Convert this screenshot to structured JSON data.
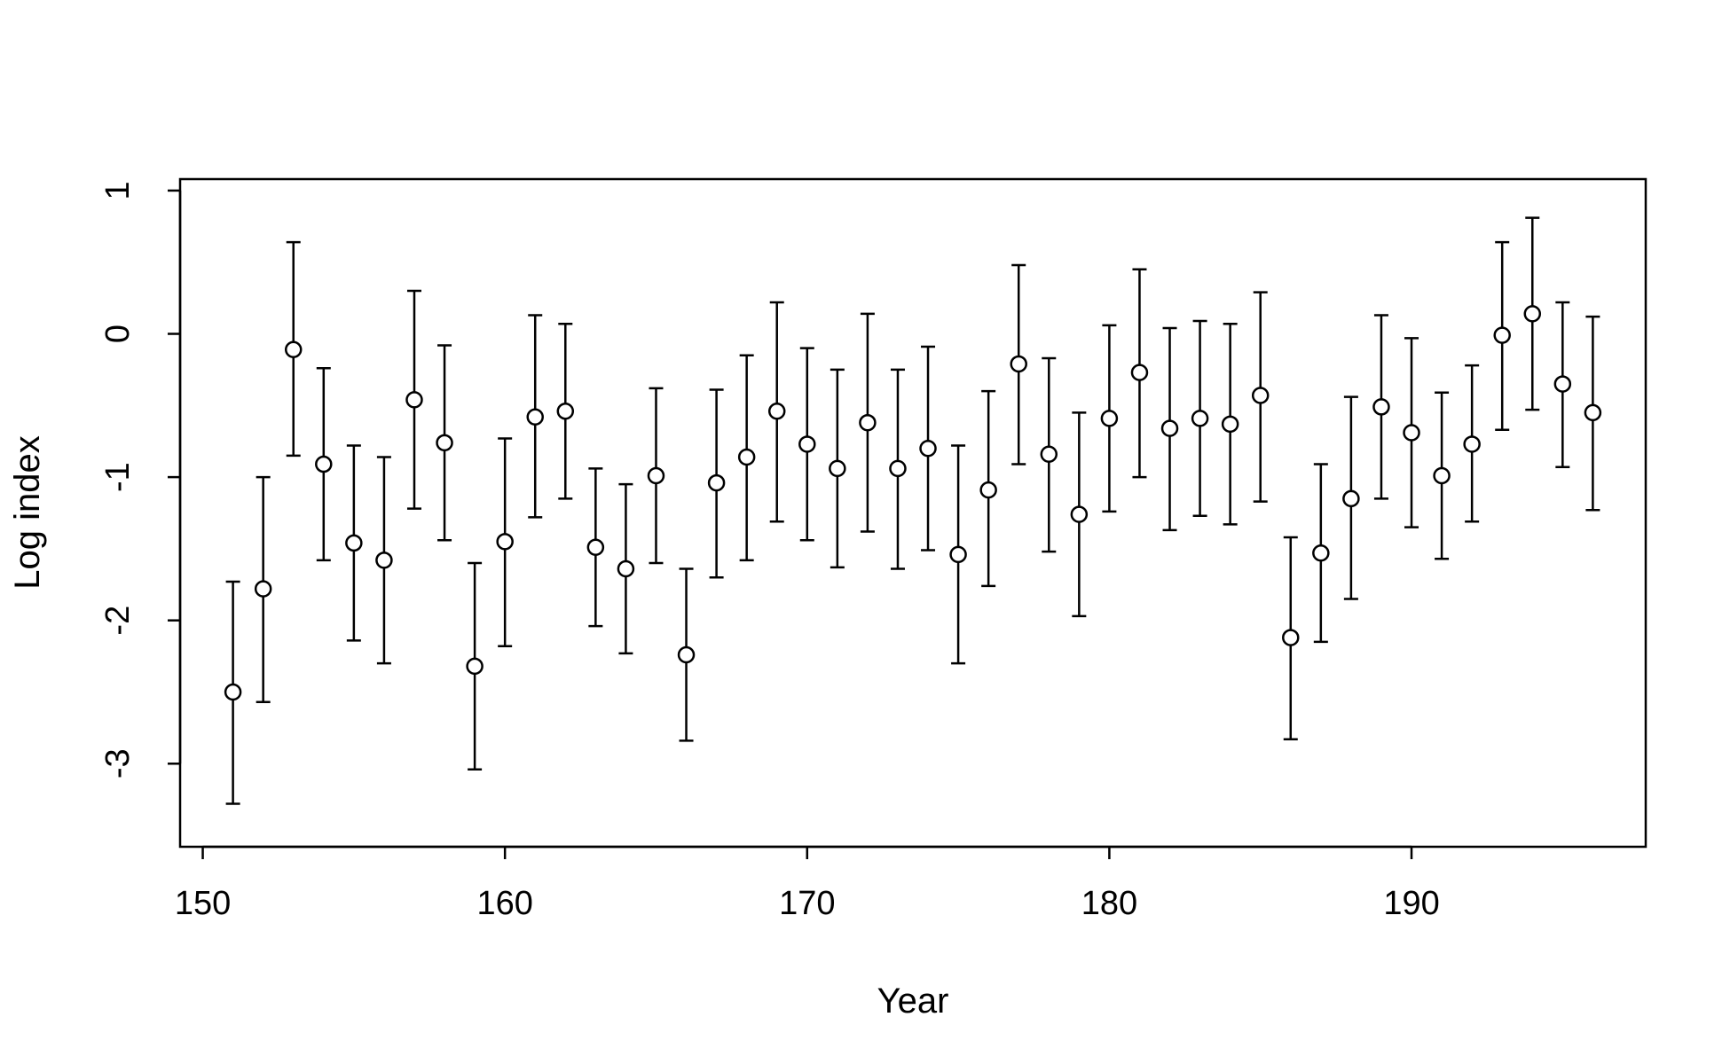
{
  "chart_data": {
    "type": "scatter",
    "xlabel": "Year",
    "ylabel": "Log index",
    "xlim": [
      149.25,
      197.75
    ],
    "ylim": [
      -3.58,
      1.08
    ],
    "xticks": [
      150,
      160,
      170,
      180,
      190
    ],
    "yticks": [
      1,
      0,
      -1,
      -2,
      -3
    ],
    "xtick_labels": [
      "150",
      "160",
      "170",
      "180",
      "190"
    ],
    "ytick_labels": [
      "1",
      "0",
      "-1",
      "-2",
      "-3"
    ],
    "grid": false,
    "marker": "open-circle",
    "error_bars": true,
    "points": [
      {
        "x": 151,
        "y": -2.5,
        "lo": -3.28,
        "hi": -1.73
      },
      {
        "x": 152,
        "y": -1.78,
        "lo": -2.57,
        "hi": -1.0
      },
      {
        "x": 153,
        "y": -0.11,
        "lo": -0.85,
        "hi": 0.64
      },
      {
        "x": 154,
        "y": -0.91,
        "lo": -1.58,
        "hi": -0.24
      },
      {
        "x": 155,
        "y": -1.46,
        "lo": -2.14,
        "hi": -0.78
      },
      {
        "x": 156,
        "y": -1.58,
        "lo": -2.3,
        "hi": -0.86
      },
      {
        "x": 157,
        "y": -0.46,
        "lo": -1.22,
        "hi": 0.3
      },
      {
        "x": 158,
        "y": -0.76,
        "lo": -1.44,
        "hi": -0.08
      },
      {
        "x": 159,
        "y": -2.32,
        "lo": -3.04,
        "hi": -1.6
      },
      {
        "x": 160,
        "y": -1.45,
        "lo": -2.18,
        "hi": -0.73
      },
      {
        "x": 161,
        "y": -0.58,
        "lo": -1.28,
        "hi": 0.13
      },
      {
        "x": 162,
        "y": -0.54,
        "lo": -1.15,
        "hi": 0.07
      },
      {
        "x": 163,
        "y": -1.49,
        "lo": -2.04,
        "hi": -0.94
      },
      {
        "x": 164,
        "y": -1.64,
        "lo": -2.23,
        "hi": -1.05
      },
      {
        "x": 165,
        "y": -0.99,
        "lo": -1.6,
        "hi": -0.38
      },
      {
        "x": 166,
        "y": -2.24,
        "lo": -2.84,
        "hi": -1.64
      },
      {
        "x": 167,
        "y": -1.04,
        "lo": -1.7,
        "hi": -0.39
      },
      {
        "x": 168,
        "y": -0.86,
        "lo": -1.58,
        "hi": -0.15
      },
      {
        "x": 169,
        "y": -0.54,
        "lo": -1.31,
        "hi": 0.22
      },
      {
        "x": 170,
        "y": -0.77,
        "lo": -1.44,
        "hi": -0.1
      },
      {
        "x": 171,
        "y": -0.94,
        "lo": -1.63,
        "hi": -0.25
      },
      {
        "x": 172,
        "y": -0.62,
        "lo": -1.38,
        "hi": 0.14
      },
      {
        "x": 173,
        "y": -0.94,
        "lo": -1.64,
        "hi": -0.25
      },
      {
        "x": 174,
        "y": -0.8,
        "lo": -1.51,
        "hi": -0.09
      },
      {
        "x": 175,
        "y": -1.54,
        "lo": -2.3,
        "hi": -0.78
      },
      {
        "x": 176,
        "y": -1.09,
        "lo": -1.76,
        "hi": -0.4
      },
      {
        "x": 177,
        "y": -0.21,
        "lo": -0.91,
        "hi": 0.48
      },
      {
        "x": 178,
        "y": -0.84,
        "lo": -1.52,
        "hi": -0.17
      },
      {
        "x": 179,
        "y": -1.26,
        "lo": -1.97,
        "hi": -0.55
      },
      {
        "x": 180,
        "y": -0.59,
        "lo": -1.24,
        "hi": 0.06
      },
      {
        "x": 181,
        "y": -0.27,
        "lo": -1.0,
        "hi": 0.45
      },
      {
        "x": 182,
        "y": -0.66,
        "lo": -1.37,
        "hi": 0.04
      },
      {
        "x": 183,
        "y": -0.59,
        "lo": -1.27,
        "hi": 0.09
      },
      {
        "x": 184,
        "y": -0.63,
        "lo": -1.33,
        "hi": 0.07
      },
      {
        "x": 185,
        "y": -0.43,
        "lo": -1.17,
        "hi": 0.29
      },
      {
        "x": 186,
        "y": -2.12,
        "lo": -2.83,
        "hi": -1.42
      },
      {
        "x": 187,
        "y": -1.53,
        "lo": -2.15,
        "hi": -0.91
      },
      {
        "x": 188,
        "y": -1.15,
        "lo": -1.85,
        "hi": -0.44
      },
      {
        "x": 189,
        "y": -0.51,
        "lo": -1.15,
        "hi": 0.13
      },
      {
        "x": 190,
        "y": -0.69,
        "lo": -1.35,
        "hi": -0.03
      },
      {
        "x": 191,
        "y": -0.99,
        "lo": -1.57,
        "hi": -0.41
      },
      {
        "x": 192,
        "y": -0.77,
        "lo": -1.31,
        "hi": -0.22
      },
      {
        "x": 193,
        "y": -0.01,
        "lo": -0.67,
        "hi": 0.64
      },
      {
        "x": 194,
        "y": 0.14,
        "lo": -0.53,
        "hi": 0.81
      },
      {
        "x": 195,
        "y": -0.35,
        "lo": -0.93,
        "hi": 0.22
      },
      {
        "x": 196,
        "y": -0.55,
        "lo": -1.23,
        "hi": 0.12
      }
    ]
  }
}
